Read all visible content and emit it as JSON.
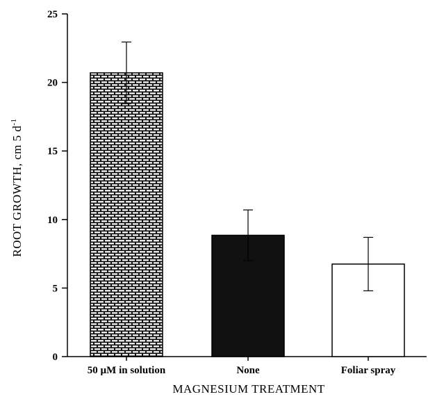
{
  "chart_data": {
    "type": "bar",
    "title": "",
    "xlabel": "MAGNESIUM TREATMENT",
    "ylabel": "ROOT GROWTH, cm 5 d",
    "ylabel_superscript": "-1",
    "ylim": [
      0,
      25
    ],
    "yticks": [
      0,
      5,
      10,
      15,
      20,
      25
    ],
    "grid": false,
    "legend": "none",
    "categories": [
      "50 µM in solution",
      "None",
      "Foliar spray"
    ],
    "values": [
      20.7,
      8.85,
      6.75
    ],
    "error": [
      2.25,
      1.85,
      1.95
    ],
    "fills": [
      "brick-pattern",
      "#111111",
      "#ffffff"
    ]
  }
}
